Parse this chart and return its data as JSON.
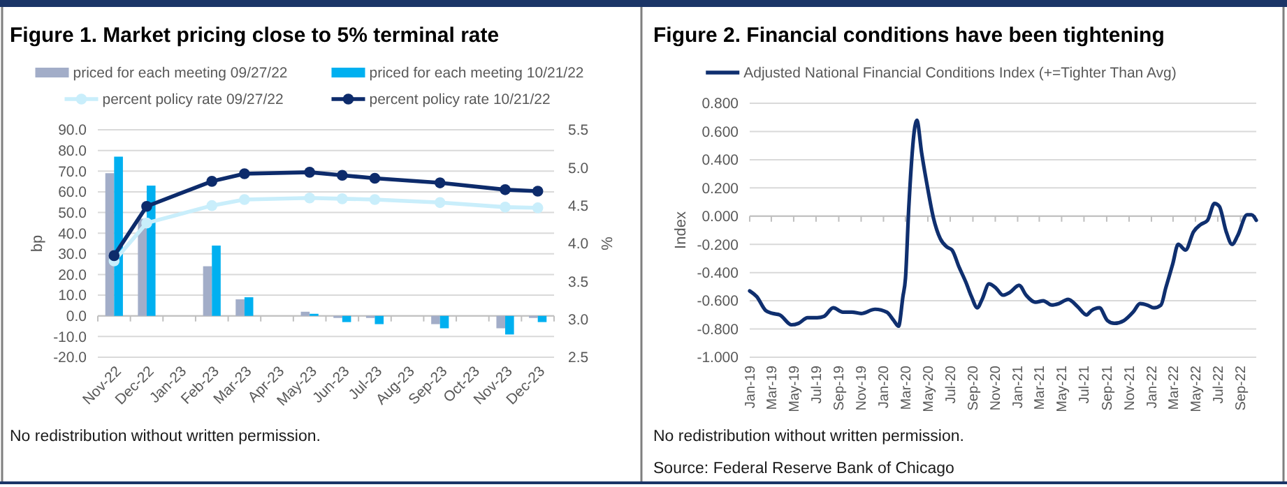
{
  "chart_data": [
    {
      "type": "bar",
      "title": "Figure 1. Market pricing close to 5% terminal rate",
      "ylabel": "bp",
      "y2label": "%",
      "categories": [
        "Nov-22",
        "Dec-22",
        "Jan-23",
        "Feb-23",
        "Mar-23",
        "Apr-23",
        "May-23",
        "Jun-23",
        "Jul-23",
        "Aug-23",
        "Sep-23",
        "Oct-23",
        "Nov-23",
        "Dec-23"
      ],
      "series": [
        {
          "name": "priced for each meeting 09/27/22",
          "color": "#a2adc8",
          "values": [
            69,
            47,
            null,
            24,
            8,
            null,
            2,
            -1,
            -1,
            null,
            -4,
            null,
            -6,
            -1
          ]
        },
        {
          "name": "priced for each meeting 10/21/22",
          "color": "#00b0f0",
          "values": [
            77,
            63,
            null,
            34,
            9,
            null,
            1,
            -3,
            -4,
            null,
            -6,
            null,
            -9,
            -3
          ]
        },
        {
          "name": "percent policy rate 09/27/22",
          "type": "line",
          "axis": "y2",
          "color": "#c9eefb",
          "values": [
            3.77,
            4.27,
            null,
            4.5,
            4.58,
            null,
            4.6,
            4.59,
            4.58,
            null,
            4.54,
            null,
            4.48,
            4.47
          ]
        },
        {
          "name": "percent policy rate 10/21/22",
          "type": "line",
          "axis": "y2",
          "color": "#0d2b6b",
          "values": [
            3.84,
            4.49,
            null,
            4.82,
            4.92,
            null,
            4.94,
            4.9,
            4.86,
            null,
            4.8,
            null,
            4.71,
            4.69
          ]
        }
      ],
      "ylim": [
        -20,
        90
      ],
      "yticks": [
        {
          "value": -20,
          "label": "-20.0"
        },
        {
          "value": -10,
          "label": "-10.0"
        },
        {
          "value": 0,
          "label": "0.0"
        },
        {
          "value": 10,
          "label": "10.0"
        },
        {
          "value": 20,
          "label": "20.0"
        },
        {
          "value": 30,
          "label": "30.0"
        },
        {
          "value": 40,
          "label": "40.0"
        },
        {
          "value": 50,
          "label": "50.0"
        },
        {
          "value": 60,
          "label": "60.0"
        },
        {
          "value": 70,
          "label": "70.0"
        },
        {
          "value": 80,
          "label": "80.0"
        },
        {
          "value": 90,
          "label": "90.0"
        }
      ],
      "y2lim": [
        2.5,
        5.5
      ],
      "y2ticks": [
        2.5,
        {
          "value": 3,
          "label": "3.0"
        },
        3.5,
        {
          "value": 4,
          "label": "4.0"
        },
        4.5,
        {
          "value": 5,
          "label": "5.0"
        },
        5.5
      ],
      "grid": "y",
      "legend": "top",
      "marker": "circle",
      "annotations": [
        "No redistribution without written permission."
      ]
    },
    {
      "type": "line",
      "title": "Figure 2. Financial conditions have been tightening",
      "ylabel": "Index",
      "series": [
        {
          "name": "Adjusted National Financial Conditions Index (+=Tighter Than Avg)",
          "color": "#0f2f6f",
          "x": [
            "2019-01-01",
            "2019-01-20",
            "2019-02-14",
            "2019-03-05",
            "2019-03-24",
            "2019-04-25",
            "2019-05-14",
            "2019-06-08",
            "2019-07-04",
            "2019-07-23",
            "2019-08-17",
            "2019-09-12",
            "2019-10-07",
            "2019-11-01",
            "2019-12-09",
            "2020-01-10",
            "2020-01-29",
            "2020-02-11",
            "2020-02-23",
            "2020-03-01",
            "2020-03-10",
            "2020-04-01",
            "2020-04-14",
            "2020-04-29",
            "2020-05-16",
            "2020-06-04",
            "2020-06-23",
            "2020-07-06",
            "2020-07-25",
            "2020-08-13",
            "2020-08-28",
            "2020-09-13",
            "2020-09-26",
            "2020-10-15",
            "2020-11-03",
            "2020-11-22",
            "2020-12-11",
            "2021-01-05",
            "2021-01-24",
            "2021-02-19",
            "2021-03-12",
            "2021-04-04",
            "2021-04-23",
            "2021-05-19",
            "2021-06-13",
            "2021-07-08",
            "2021-07-21",
            "2021-08-12",
            "2021-09-03",
            "2021-09-22",
            "2021-10-18",
            "2021-11-12",
            "2021-12-01",
            "2021-12-20",
            "2022-01-08",
            "2022-01-27",
            "2022-02-09",
            "2022-02-28",
            "2022-03-15",
            "2022-04-04",
            "2022-04-26",
            "2022-05-15",
            "2022-06-03",
            "2022-06-22",
            "2022-07-05",
            "2022-07-24",
            "2022-08-09",
            "2022-08-24",
            "2022-09-19",
            "2022-10-01",
            "2022-10-14"
          ],
          "values": [
            -0.53,
            -0.57,
            -0.67,
            -0.69,
            -0.7,
            -0.77,
            -0.76,
            -0.72,
            -0.72,
            -0.71,
            -0.65,
            -0.68,
            -0.68,
            -0.69,
            -0.66,
            -0.68,
            -0.74,
            -0.78,
            -0.57,
            -0.44,
            0.06,
            0.68,
            0.45,
            0.22,
            -0.01,
            -0.16,
            -0.22,
            -0.24,
            -0.36,
            -0.47,
            -0.57,
            -0.65,
            -0.59,
            -0.48,
            -0.51,
            -0.56,
            -0.54,
            -0.49,
            -0.56,
            -0.61,
            -0.6,
            -0.63,
            -0.62,
            -0.59,
            -0.64,
            -0.7,
            -0.67,
            -0.65,
            -0.74,
            -0.76,
            -0.74,
            -0.68,
            -0.62,
            -0.63,
            -0.65,
            -0.63,
            -0.51,
            -0.34,
            -0.2,
            -0.24,
            -0.11,
            -0.06,
            -0.03,
            0.09,
            0.07,
            -0.11,
            -0.2,
            -0.14,
            0.01,
            0.01,
            -0.03
          ]
        }
      ],
      "xlim": [
        "2019-01-01",
        "2022-10-14"
      ],
      "xticks": [
        {
          "value": "2019-01-01",
          "label": "Jan-19"
        },
        {
          "value": "2019-03-01",
          "label": "Mar-19"
        },
        {
          "value": "2019-05-01",
          "label": "May-19"
        },
        {
          "value": "2019-07-01",
          "label": "Jul-19"
        },
        {
          "value": "2019-09-01",
          "label": "Sep-19"
        },
        {
          "value": "2019-11-01",
          "label": "Nov-19"
        },
        {
          "value": "2020-01-01",
          "label": "Jan-20"
        },
        {
          "value": "2020-03-01",
          "label": "Mar-20"
        },
        {
          "value": "2020-05-01",
          "label": "May-20"
        },
        {
          "value": "2020-07-01",
          "label": "Jul-20"
        },
        {
          "value": "2020-09-01",
          "label": "Sep-20"
        },
        {
          "value": "2020-11-01",
          "label": "Nov-20"
        },
        {
          "value": "2021-01-01",
          "label": "Jan-21"
        },
        {
          "value": "2021-03-01",
          "label": "Mar-21"
        },
        {
          "value": "2021-05-01",
          "label": "May-21"
        },
        {
          "value": "2021-07-01",
          "label": "Jul-21"
        },
        {
          "value": "2021-09-01",
          "label": "Sep-21"
        },
        {
          "value": "2021-11-01",
          "label": "Nov-21"
        },
        {
          "value": "2022-01-01",
          "label": "Jan-22"
        },
        {
          "value": "2022-03-01",
          "label": "Mar-22"
        },
        {
          "value": "2022-05-01",
          "label": "May-22"
        },
        {
          "value": "2022-07-01",
          "label": "Jul-22"
        },
        {
          "value": "2022-09-01",
          "label": "Sep-22"
        }
      ],
      "ylim": [
        -1,
        0.8
      ],
      "yticks": [
        {
          "value": -1,
          "label": "-1.000"
        },
        {
          "value": -0.8,
          "label": "-0.800"
        },
        {
          "value": -0.6,
          "label": "-0.600"
        },
        {
          "value": -0.4,
          "label": "-0.400"
        },
        {
          "value": -0.2,
          "label": "-0.200"
        },
        {
          "value": 0,
          "label": "0.000"
        },
        {
          "value": 0.2,
          "label": "0.200"
        },
        {
          "value": 0.4,
          "label": "0.400"
        },
        {
          "value": 0.6,
          "label": "0.600"
        },
        {
          "value": 0.8,
          "label": "0.800"
        }
      ],
      "grid": "y",
      "legend": "top",
      "annotations": [
        "No redistribution without written permission.",
        "Source: Federal Reserve Bank of Chicago"
      ]
    }
  ]
}
